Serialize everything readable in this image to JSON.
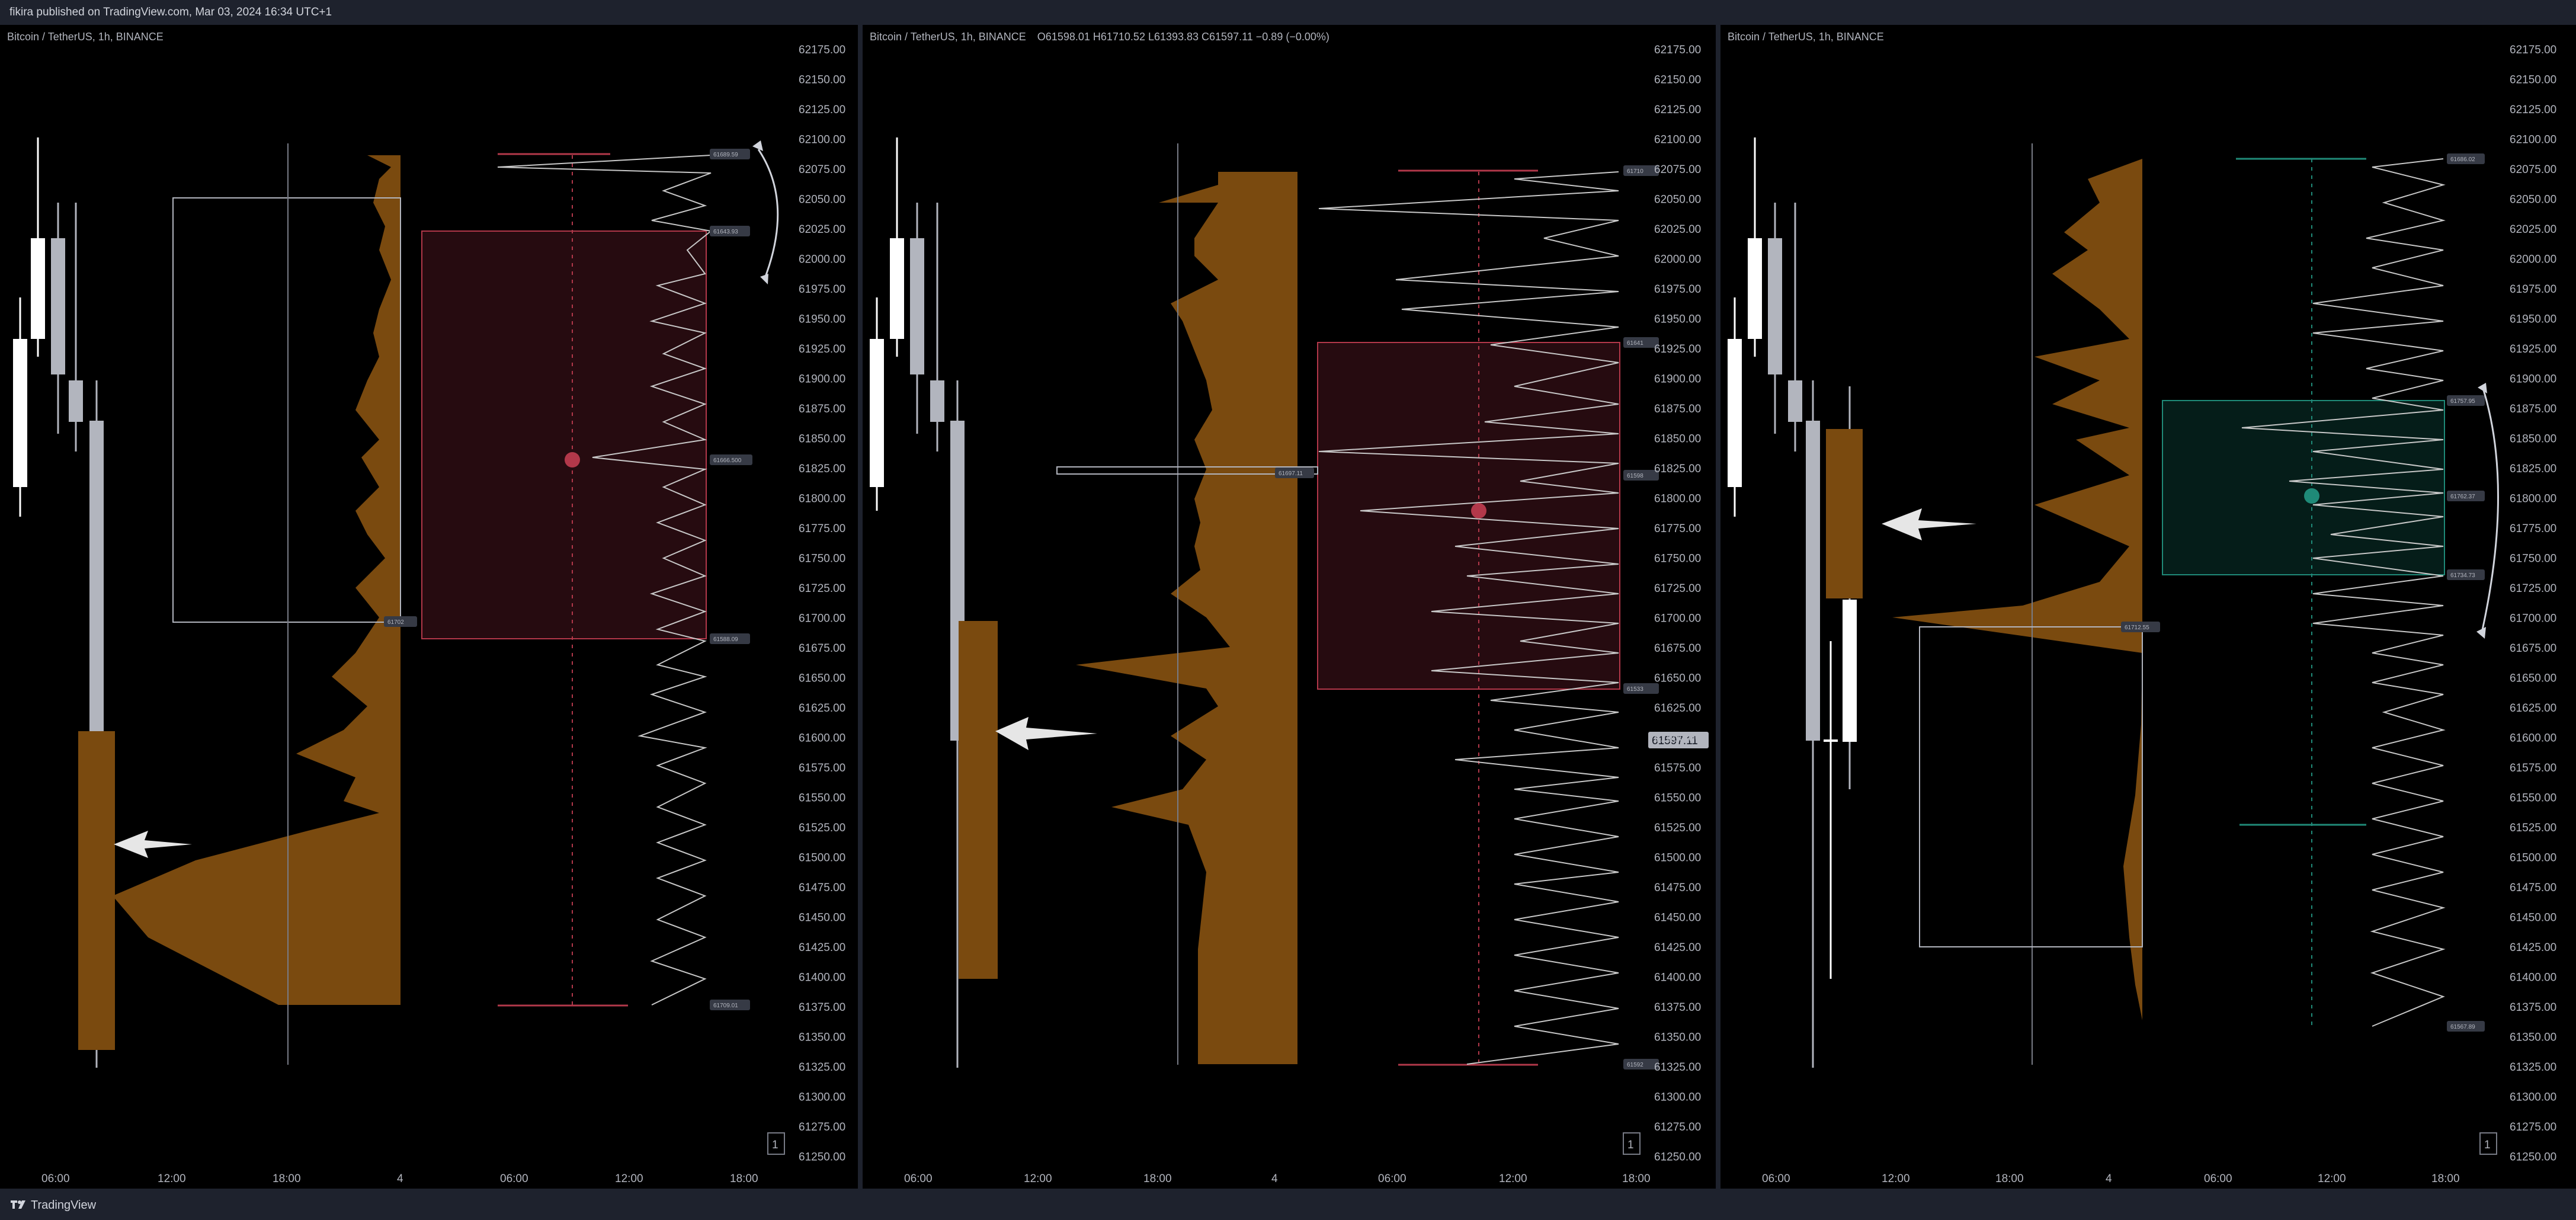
{
  "header": {
    "published_by": "fikira published on TradingView.com, Mar 03, 2024 16:34 UTC+1"
  },
  "footer": {
    "brand": "TradingView"
  },
  "price_axis": {
    "labels": [
      "62175.00",
      "62150.00",
      "62125.00",
      "62100.00",
      "62075.00",
      "62050.00",
      "62025.00",
      "62000.00",
      "61975.00",
      "61950.00",
      "61925.00",
      "61900.00",
      "61875.00",
      "61850.00",
      "61825.00",
      "61800.00",
      "61775.00",
      "61750.00",
      "61725.00",
      "61700.00",
      "61675.00",
      "61650.00",
      "61625.00",
      "61600.00",
      "61575.00",
      "61550.00",
      "61525.00",
      "61500.00",
      "61475.00",
      "61450.00",
      "61425.00",
      "61400.00",
      "61375.00",
      "61350.00",
      "61325.00",
      "61300.00",
      "61275.00",
      "61250.00"
    ]
  },
  "time_axis": {
    "labels": [
      "06:00",
      "12:00",
      "18:00",
      "4",
      "06:00",
      "12:00",
      "18:00"
    ]
  },
  "colors": {
    "background": "#000000",
    "frame": "#1e222d",
    "volume_profile": "#7a4a0f",
    "volume_profile_box": "#6b4410",
    "candle_up": "#ffffff",
    "candle_down": "#b2b5be",
    "bear_box": "#b2384a",
    "bull_box": "#1f8a78",
    "profile_line": "#c8c8c8"
  },
  "panels": [
    {
      "title": "Bitcoin / TetherUS, 1h, BINANCE",
      "ohlc": "",
      "box_levels": [
        "61689.59",
        "61643.93",
        "61666.500",
        "61588.09",
        "61709.01"
      ],
      "small_label": "61702",
      "page_button": "1"
    },
    {
      "title": "Bitcoin / TetherUS, 1h, BINANCE",
      "ohlc": "O61598.01  H61710.52  L61393.83  C61597.11  −0.89 (−0.00%)",
      "box_levels": [
        "61710",
        "61641",
        "61598",
        "61533",
        "61592"
      ],
      "small_label": "61697.11",
      "last_price": "61597.11",
      "page_button": "1"
    },
    {
      "title": "Bitcoin / TetherUS, 1h, BINANCE",
      "ohlc": "",
      "box_levels": [
        "61686.02",
        "61757.95",
        "61762.37",
        "61734.73",
        "61567.89"
      ],
      "small_label": "61712.55",
      "page_button": "1"
    }
  ]
}
